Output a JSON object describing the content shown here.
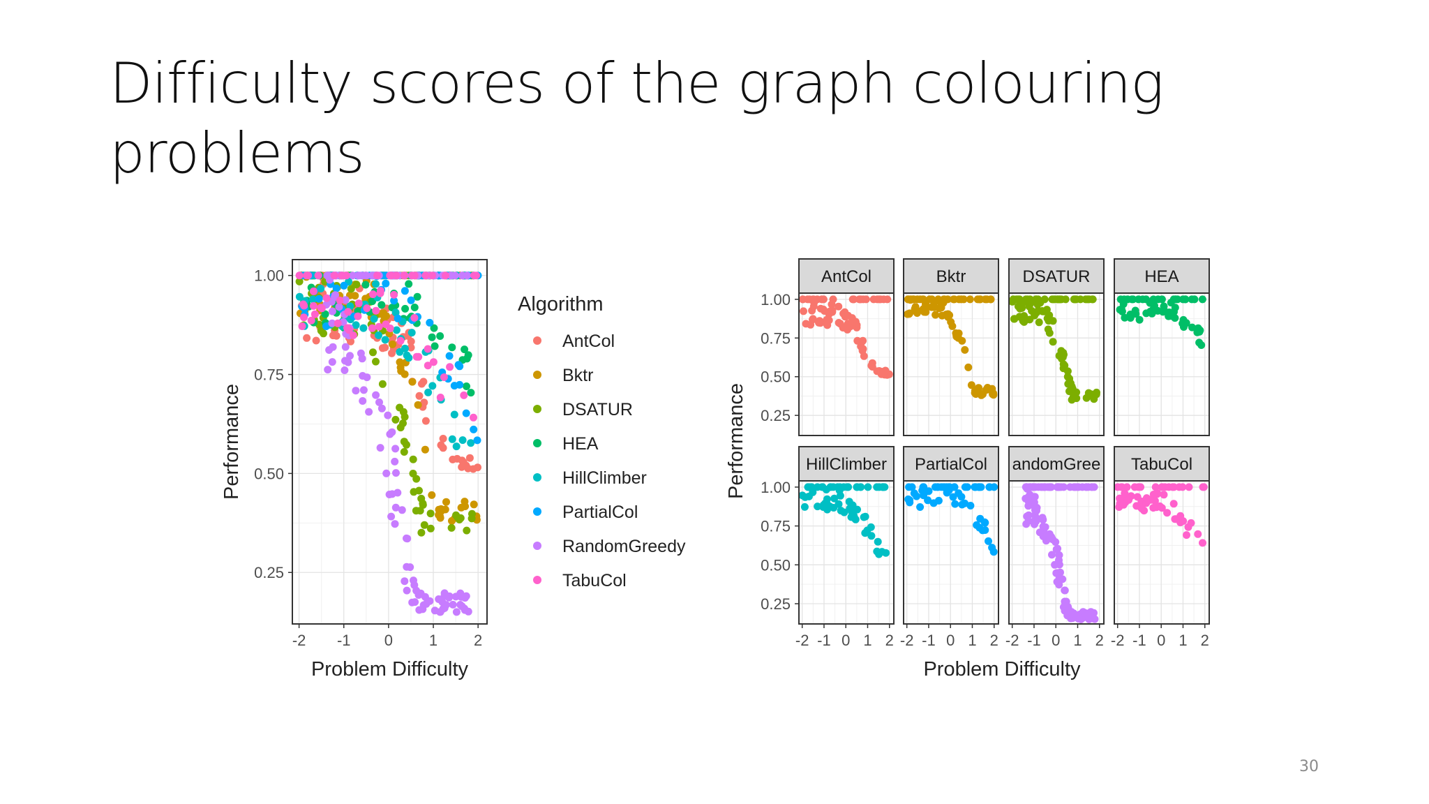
{
  "slide": {
    "title_line1": "Difficulty scores of the graph colouring",
    "title_line2": "problems",
    "page_number": "30"
  },
  "chart_data": [
    {
      "type": "scatter",
      "title": "",
      "xlabel": "Problem Difficulty",
      "ylabel": "Performance",
      "xlim": [
        -2.15,
        2.2
      ],
      "ylim": [
        0.12,
        1.04
      ],
      "xticks": [
        "-2",
        "-1",
        "0",
        "1",
        "2"
      ],
      "yticks": [
        "0.25",
        "0.50",
        "0.75",
        "1.00"
      ],
      "grid": true,
      "legend": {
        "title": "Algorithm",
        "position": "right"
      },
      "series": [
        {
          "name": "AntCol",
          "color": "#F8766D"
        },
        {
          "name": "Bktr",
          "color": "#CD9600"
        },
        {
          "name": "DSATUR",
          "color": "#7CAE00"
        },
        {
          "name": "HEA",
          "color": "#00BE67"
        },
        {
          "name": "HillClimber",
          "color": "#00BFC4"
        },
        {
          "name": "PartialCol",
          "color": "#00A9FF"
        },
        {
          "name": "RandomGreedy",
          "color": "#C77CFF"
        },
        {
          "name": "TabuCol",
          "color": "#FF61CC"
        }
      ]
    },
    {
      "type": "scatter",
      "facetted": true,
      "xlabel": "Problem Difficulty",
      "ylabel": "Performance",
      "xlim": [
        -2.15,
        2.2
      ],
      "ylim": [
        0.12,
        1.04
      ],
      "xticks": [
        "-2",
        "-1",
        "0",
        "1",
        "2"
      ],
      "yticks": [
        "0.25",
        "0.50",
        "0.75",
        "1.00"
      ],
      "grid": true,
      "panels": [
        {
          "label": "AntCol",
          "series": "AntCol",
          "color": "#F8766D"
        },
        {
          "label": "Bktr",
          "series": "Bktr",
          "color": "#CD9600"
        },
        {
          "label": "DSATUR",
          "series": "DSATUR",
          "color": "#7CAE00"
        },
        {
          "label": "HEA",
          "series": "HEA",
          "color": "#00BE67"
        },
        {
          "label": "HillClimber",
          "series": "HillClimber",
          "color": "#00BFC4"
        },
        {
          "label": "PartialCol",
          "series": "PartialCol",
          "color": "#00A9FF"
        },
        {
          "label": "andomGree",
          "series": "RandomGreedy",
          "color": "#C77CFF"
        },
        {
          "label": "TabuCol",
          "series": "TabuCol",
          "color": "#FF61CC"
        }
      ]
    }
  ]
}
